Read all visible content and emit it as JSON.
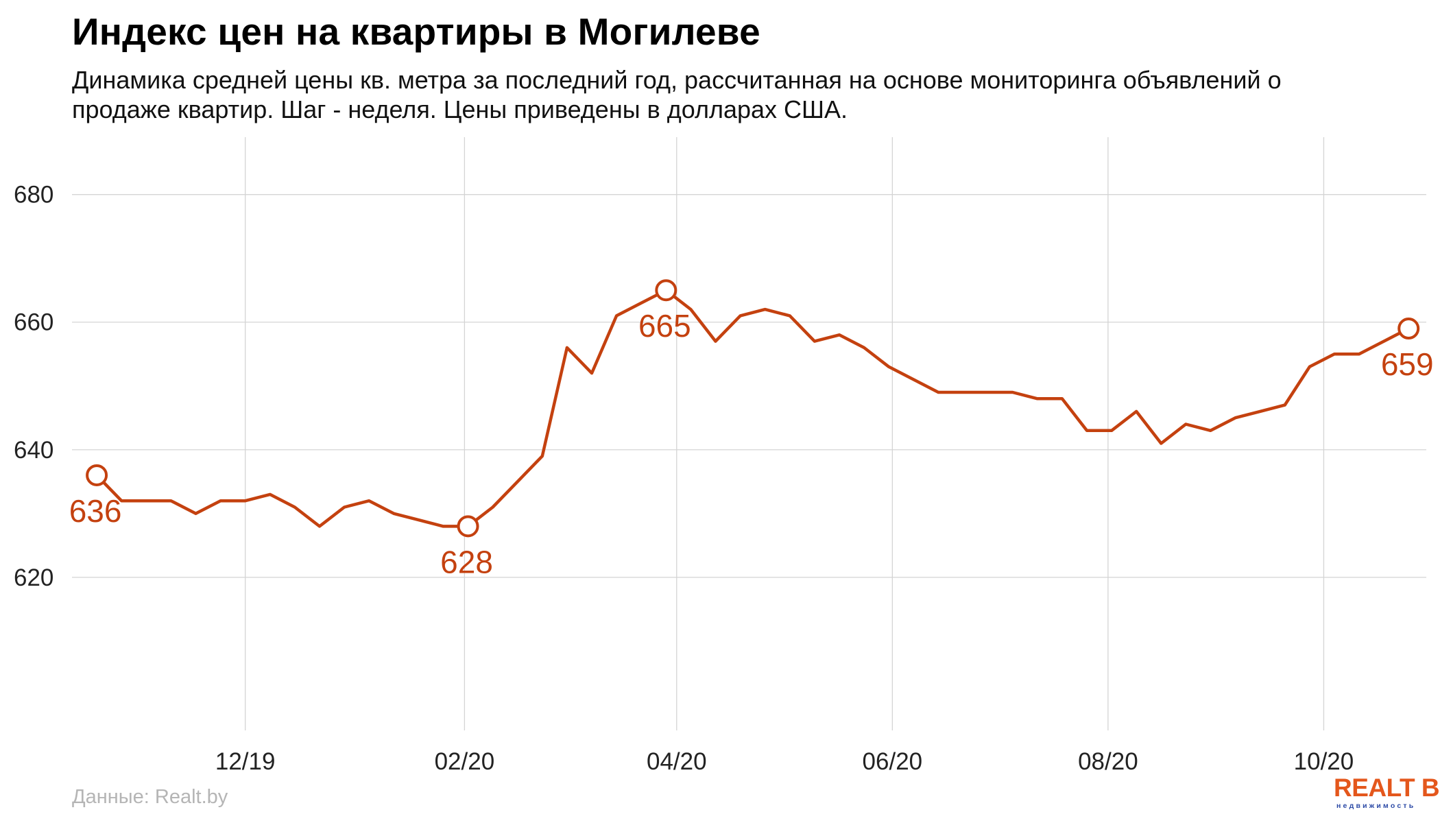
{
  "title": "Индекс цен на квартиры в Могилеве",
  "subtitle": "Динамика средней цены кв. метра за последний год, рассчитанная на основе мониторинга объявлений о продаже квартир. Шаг - неделя. Цены приведены в долларах США.",
  "source": "Данные: Realt.by",
  "logo": {
    "main": "REALT BY",
    "sub": "недвижимость"
  },
  "colors": {
    "line": "#c4410f",
    "grid": "#d4d4d4",
    "tick_text": "#222222",
    "source_text": "#b5b5b5"
  },
  "chart_data": {
    "type": "line",
    "title": "Индекс цен на квартиры в Могилеве",
    "xlabel": "",
    "ylabel": "",
    "ylim": [
      596,
      689
    ],
    "y_ticks": [
      620,
      640,
      660,
      680
    ],
    "x_tick_labels": [
      {
        "label": "12/19",
        "date": "2019-12-01"
      },
      {
        "label": "02/20",
        "date": "2020-02-01"
      },
      {
        "label": "04/20",
        "date": "2020-04-01"
      },
      {
        "label": "06/20",
        "date": "2020-06-01"
      },
      {
        "label": "08/20",
        "date": "2020-08-01"
      },
      {
        "label": "10/20",
        "date": "2020-10-01"
      }
    ],
    "xlim": [
      "2019-10-13",
      "2020-10-30"
    ],
    "grid": true,
    "legend": "none",
    "series": [
      {
        "points": [
          [
            "2019-10-20",
            636
          ],
          [
            "2019-10-27",
            632
          ],
          [
            "2019-11-03",
            632
          ],
          [
            "2019-11-10",
            632
          ],
          [
            "2019-11-17",
            630
          ],
          [
            "2019-11-24",
            632
          ],
          [
            "2019-12-01",
            632
          ],
          [
            "2019-12-08",
            633
          ],
          [
            "2019-12-15",
            631
          ],
          [
            "2019-12-22",
            628
          ],
          [
            "2019-12-29",
            631
          ],
          [
            "2020-01-05",
            632
          ],
          [
            "2020-01-12",
            630
          ],
          [
            "2020-01-19",
            629
          ],
          [
            "2020-01-26",
            628
          ],
          [
            "2020-02-02",
            628
          ],
          [
            "2020-02-09",
            631
          ],
          [
            "2020-02-16",
            635
          ],
          [
            "2020-02-23",
            639
          ],
          [
            "2020-03-01",
            656
          ],
          [
            "2020-03-08",
            652
          ],
          [
            "2020-03-15",
            661
          ],
          [
            "2020-03-22",
            663
          ],
          [
            "2020-03-29",
            665
          ],
          [
            "2020-04-05",
            662
          ],
          [
            "2020-04-12",
            657
          ],
          [
            "2020-04-19",
            661
          ],
          [
            "2020-04-26",
            662
          ],
          [
            "2020-05-03",
            661
          ],
          [
            "2020-05-10",
            657
          ],
          [
            "2020-05-17",
            658
          ],
          [
            "2020-05-24",
            656
          ],
          [
            "2020-05-31",
            653
          ],
          [
            "2020-06-07",
            651
          ],
          [
            "2020-06-14",
            649
          ],
          [
            "2020-06-21",
            649
          ],
          [
            "2020-06-28",
            649
          ],
          [
            "2020-07-05",
            649
          ],
          [
            "2020-07-12",
            648
          ],
          [
            "2020-07-19",
            648
          ],
          [
            "2020-07-26",
            643
          ],
          [
            "2020-08-02",
            643
          ],
          [
            "2020-08-09",
            646
          ],
          [
            "2020-08-16",
            641
          ],
          [
            "2020-08-23",
            644
          ],
          [
            "2020-08-30",
            643
          ],
          [
            "2020-09-06",
            645
          ],
          [
            "2020-09-13",
            646
          ],
          [
            "2020-09-20",
            647
          ],
          [
            "2020-09-27",
            653
          ],
          [
            "2020-10-04",
            655
          ],
          [
            "2020-10-11",
            655
          ],
          [
            "2020-10-18",
            657
          ],
          [
            "2020-10-25",
            659
          ]
        ]
      }
    ],
    "annotations": [
      {
        "date": "2019-10-20",
        "value": 636,
        "label": "636"
      },
      {
        "date": "2020-02-02",
        "value": 628,
        "label": "628"
      },
      {
        "date": "2020-03-29",
        "value": 665,
        "label": "665"
      },
      {
        "date": "2020-10-25",
        "value": 659,
        "label": "659"
      }
    ]
  }
}
